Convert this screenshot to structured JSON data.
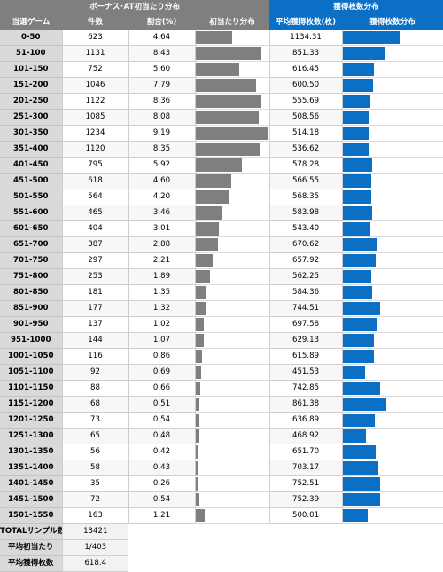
{
  "headers": {
    "group_left": "ボーナス･AT初当たり分布",
    "group_right": "獲得枚数分布",
    "col_range": "当選ゲーム",
    "col_count": "件数",
    "col_ratio": "割合(%)",
    "col_dist1": "初当たり分布",
    "col_avg": "平均獲得枚数(枚)",
    "col_dist2": "獲得枚数分布"
  },
  "summary": [
    {
      "label": "TOTALサンプル数",
      "value": "13421"
    },
    {
      "label": "平均初当たり",
      "value": "1/403"
    },
    {
      "label": "平均獲得枚数",
      "value": "618.4"
    }
  ],
  "colors": {
    "gray_bar": "#7f7f7f",
    "blue_bar": "#0b6fc6"
  },
  "chart_data": {
    "type": "table",
    "bar_scale": {
      "ratio_max": 9.19,
      "avg_max": 1134.31
    },
    "rows": [
      {
        "range": "0-50",
        "count": "623",
        "ratio": "4.64",
        "avg": "1134.31"
      },
      {
        "range": "51-100",
        "count": "1131",
        "ratio": "8.43",
        "avg": "851.33"
      },
      {
        "range": "101-150",
        "count": "752",
        "ratio": "5.60",
        "avg": "616.45"
      },
      {
        "range": "151-200",
        "count": "1046",
        "ratio": "7.79",
        "avg": "600.50"
      },
      {
        "range": "201-250",
        "count": "1122",
        "ratio": "8.36",
        "avg": "555.69"
      },
      {
        "range": "251-300",
        "count": "1085",
        "ratio": "8.08",
        "avg": "508.56"
      },
      {
        "range": "301-350",
        "count": "1234",
        "ratio": "9.19",
        "avg": "514.18"
      },
      {
        "range": "351-400",
        "count": "1120",
        "ratio": "8.35",
        "avg": "536.62"
      },
      {
        "range": "401-450",
        "count": "795",
        "ratio": "5.92",
        "avg": "578.28"
      },
      {
        "range": "451-500",
        "count": "618",
        "ratio": "4.60",
        "avg": "566.55"
      },
      {
        "range": "501-550",
        "count": "564",
        "ratio": "4.20",
        "avg": "568.35"
      },
      {
        "range": "551-600",
        "count": "465",
        "ratio": "3.46",
        "avg": "583.98"
      },
      {
        "range": "601-650",
        "count": "404",
        "ratio": "3.01",
        "avg": "543.40"
      },
      {
        "range": "651-700",
        "count": "387",
        "ratio": "2.88",
        "avg": "670.62"
      },
      {
        "range": "701-750",
        "count": "297",
        "ratio": "2.21",
        "avg": "657.92"
      },
      {
        "range": "751-800",
        "count": "253",
        "ratio": "1.89",
        "avg": "562.25"
      },
      {
        "range": "801-850",
        "count": "181",
        "ratio": "1.35",
        "avg": "584.36"
      },
      {
        "range": "851-900",
        "count": "177",
        "ratio": "1.32",
        "avg": "744.51"
      },
      {
        "range": "901-950",
        "count": "137",
        "ratio": "1.02",
        "avg": "697.58"
      },
      {
        "range": "951-1000",
        "count": "144",
        "ratio": "1.07",
        "avg": "629.13"
      },
      {
        "range": "1001-1050",
        "count": "116",
        "ratio": "0.86",
        "avg": "615.89"
      },
      {
        "range": "1051-1100",
        "count": "92",
        "ratio": "0.69",
        "avg": "451.53"
      },
      {
        "range": "1101-1150",
        "count": "88",
        "ratio": "0.66",
        "avg": "742.85"
      },
      {
        "range": "1151-1200",
        "count": "68",
        "ratio": "0.51",
        "avg": "861.38"
      },
      {
        "range": "1201-1250",
        "count": "73",
        "ratio": "0.54",
        "avg": "636.89"
      },
      {
        "range": "1251-1300",
        "count": "65",
        "ratio": "0.48",
        "avg": "468.92"
      },
      {
        "range": "1301-1350",
        "count": "56",
        "ratio": "0.42",
        "avg": "651.70"
      },
      {
        "range": "1351-1400",
        "count": "58",
        "ratio": "0.43",
        "avg": "703.17"
      },
      {
        "range": "1401-1450",
        "count": "35",
        "ratio": "0.26",
        "avg": "752.51"
      },
      {
        "range": "1451-1500",
        "count": "72",
        "ratio": "0.54",
        "avg": "752.39"
      },
      {
        "range": "1501-1550",
        "count": "163",
        "ratio": "1.21",
        "avg": "500.01"
      }
    ]
  }
}
